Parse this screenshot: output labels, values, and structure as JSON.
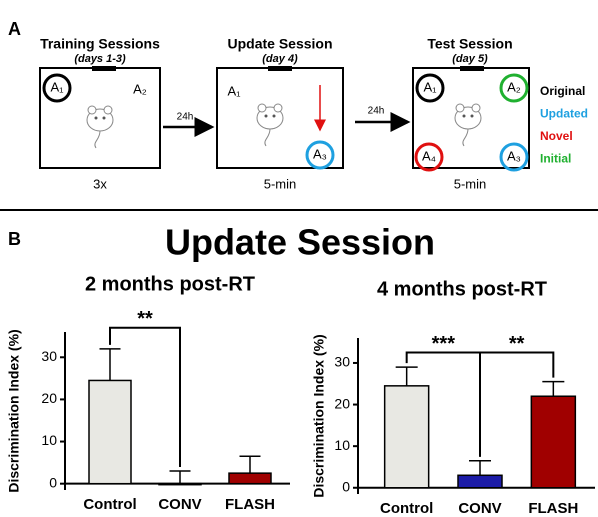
{
  "panel_a": {
    "label": "A",
    "training": {
      "title": "Training Sessions",
      "subtitle": "(days 1-3)",
      "objects": [
        "A₁",
        "A₂"
      ],
      "duration": "3x"
    },
    "update": {
      "title": "Update Session",
      "subtitle": "(day 4)",
      "objects": [
        "A₁",
        "A₃"
      ],
      "duration": "5-min"
    },
    "test": {
      "title": "Test Session",
      "subtitle": "(day 5)",
      "objects": [
        "A₁",
        "A₂",
        "A₄",
        "A₃"
      ],
      "duration": "5-min"
    },
    "delays": [
      "24h",
      "24h"
    ],
    "legend": [
      {
        "name": "Original",
        "color": "#000000"
      },
      {
        "name": "Updated",
        "color": "#1ea0e0"
      },
      {
        "name": "Novel",
        "color": "#e01010"
      },
      {
        "name": "Initial",
        "color": "#20b030"
      }
    ]
  },
  "panel_b": {
    "label": "B",
    "title": "Update Session"
  },
  "chart_data": [
    {
      "type": "bar",
      "title": "2 months post-RT",
      "ylabel": "Discrimination Index (%)",
      "categories": [
        "Control",
        "CONV",
        "FLASH"
      ],
      "values": [
        24.5,
        0,
        2.5
      ],
      "errors": [
        7.5,
        3,
        4
      ],
      "colors": [
        "#e8e8e3",
        "#1c1ca8",
        "#a00000"
      ],
      "ylim": [
        -1.5,
        36
      ],
      "yticks": [
        0,
        10,
        20,
        30
      ],
      "annotations": [
        {
          "text": "**",
          "from": 0,
          "to": 1,
          "level": 37
        }
      ]
    },
    {
      "type": "bar",
      "title": "4 months post-RT",
      "ylabel": "Discrimination Index (%)",
      "categories": [
        "Control",
        "CONV",
        "FLASH"
      ],
      "values": [
        24.5,
        3,
        22
      ],
      "errors": [
        4.5,
        3.5,
        3.5
      ],
      "colors": [
        "#e8e8e3",
        "#1c1ca8",
        "#a00000"
      ],
      "ylim": [
        -1.5,
        36
      ],
      "yticks": [
        0,
        10,
        20,
        30
      ],
      "annotations": [
        {
          "text": "***",
          "from": 0,
          "to": 1,
          "level": 32.5
        },
        {
          "text": "**",
          "from": 1,
          "to": 2,
          "level": 32.5
        }
      ]
    }
  ]
}
